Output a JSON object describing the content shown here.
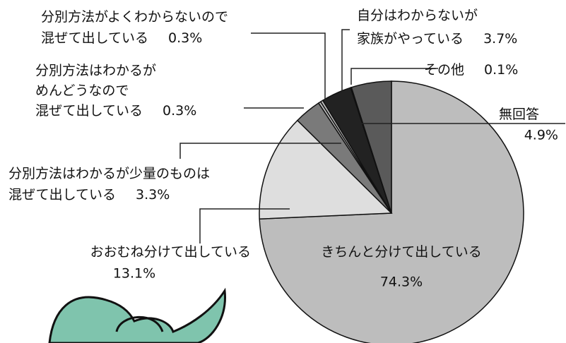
{
  "chart_data": {
    "type": "pie",
    "categories": [
      "きちんと分けて出している",
      "おおむね分けて出している",
      "分別方法はわかるが少量のものは\n混ぜて出している",
      "分別方法はわかるが\nめんどうなので\n混ぜて出している",
      "分別方法がよくわからないので\n混ぜて出している",
      "自分はわからないが\n家族がやっている",
      "その他",
      "無回答"
    ],
    "values": [
      74.3,
      13.1,
      3.3,
      0.3,
      0.3,
      3.7,
      0.1,
      4.9
    ],
    "value_labels": [
      "74.3%",
      "13.1%",
      "3.3%",
      "0.3%",
      "0.3%",
      "3.7%",
      "0.1%",
      "4.9%"
    ],
    "colors": [
      "#bdbdbd",
      "#dedede",
      "#7a7a7a",
      "#bdbdbd",
      "#bdbdbd",
      "#222222",
      "#bdbdbd",
      "#5a5a5a"
    ]
  }
}
